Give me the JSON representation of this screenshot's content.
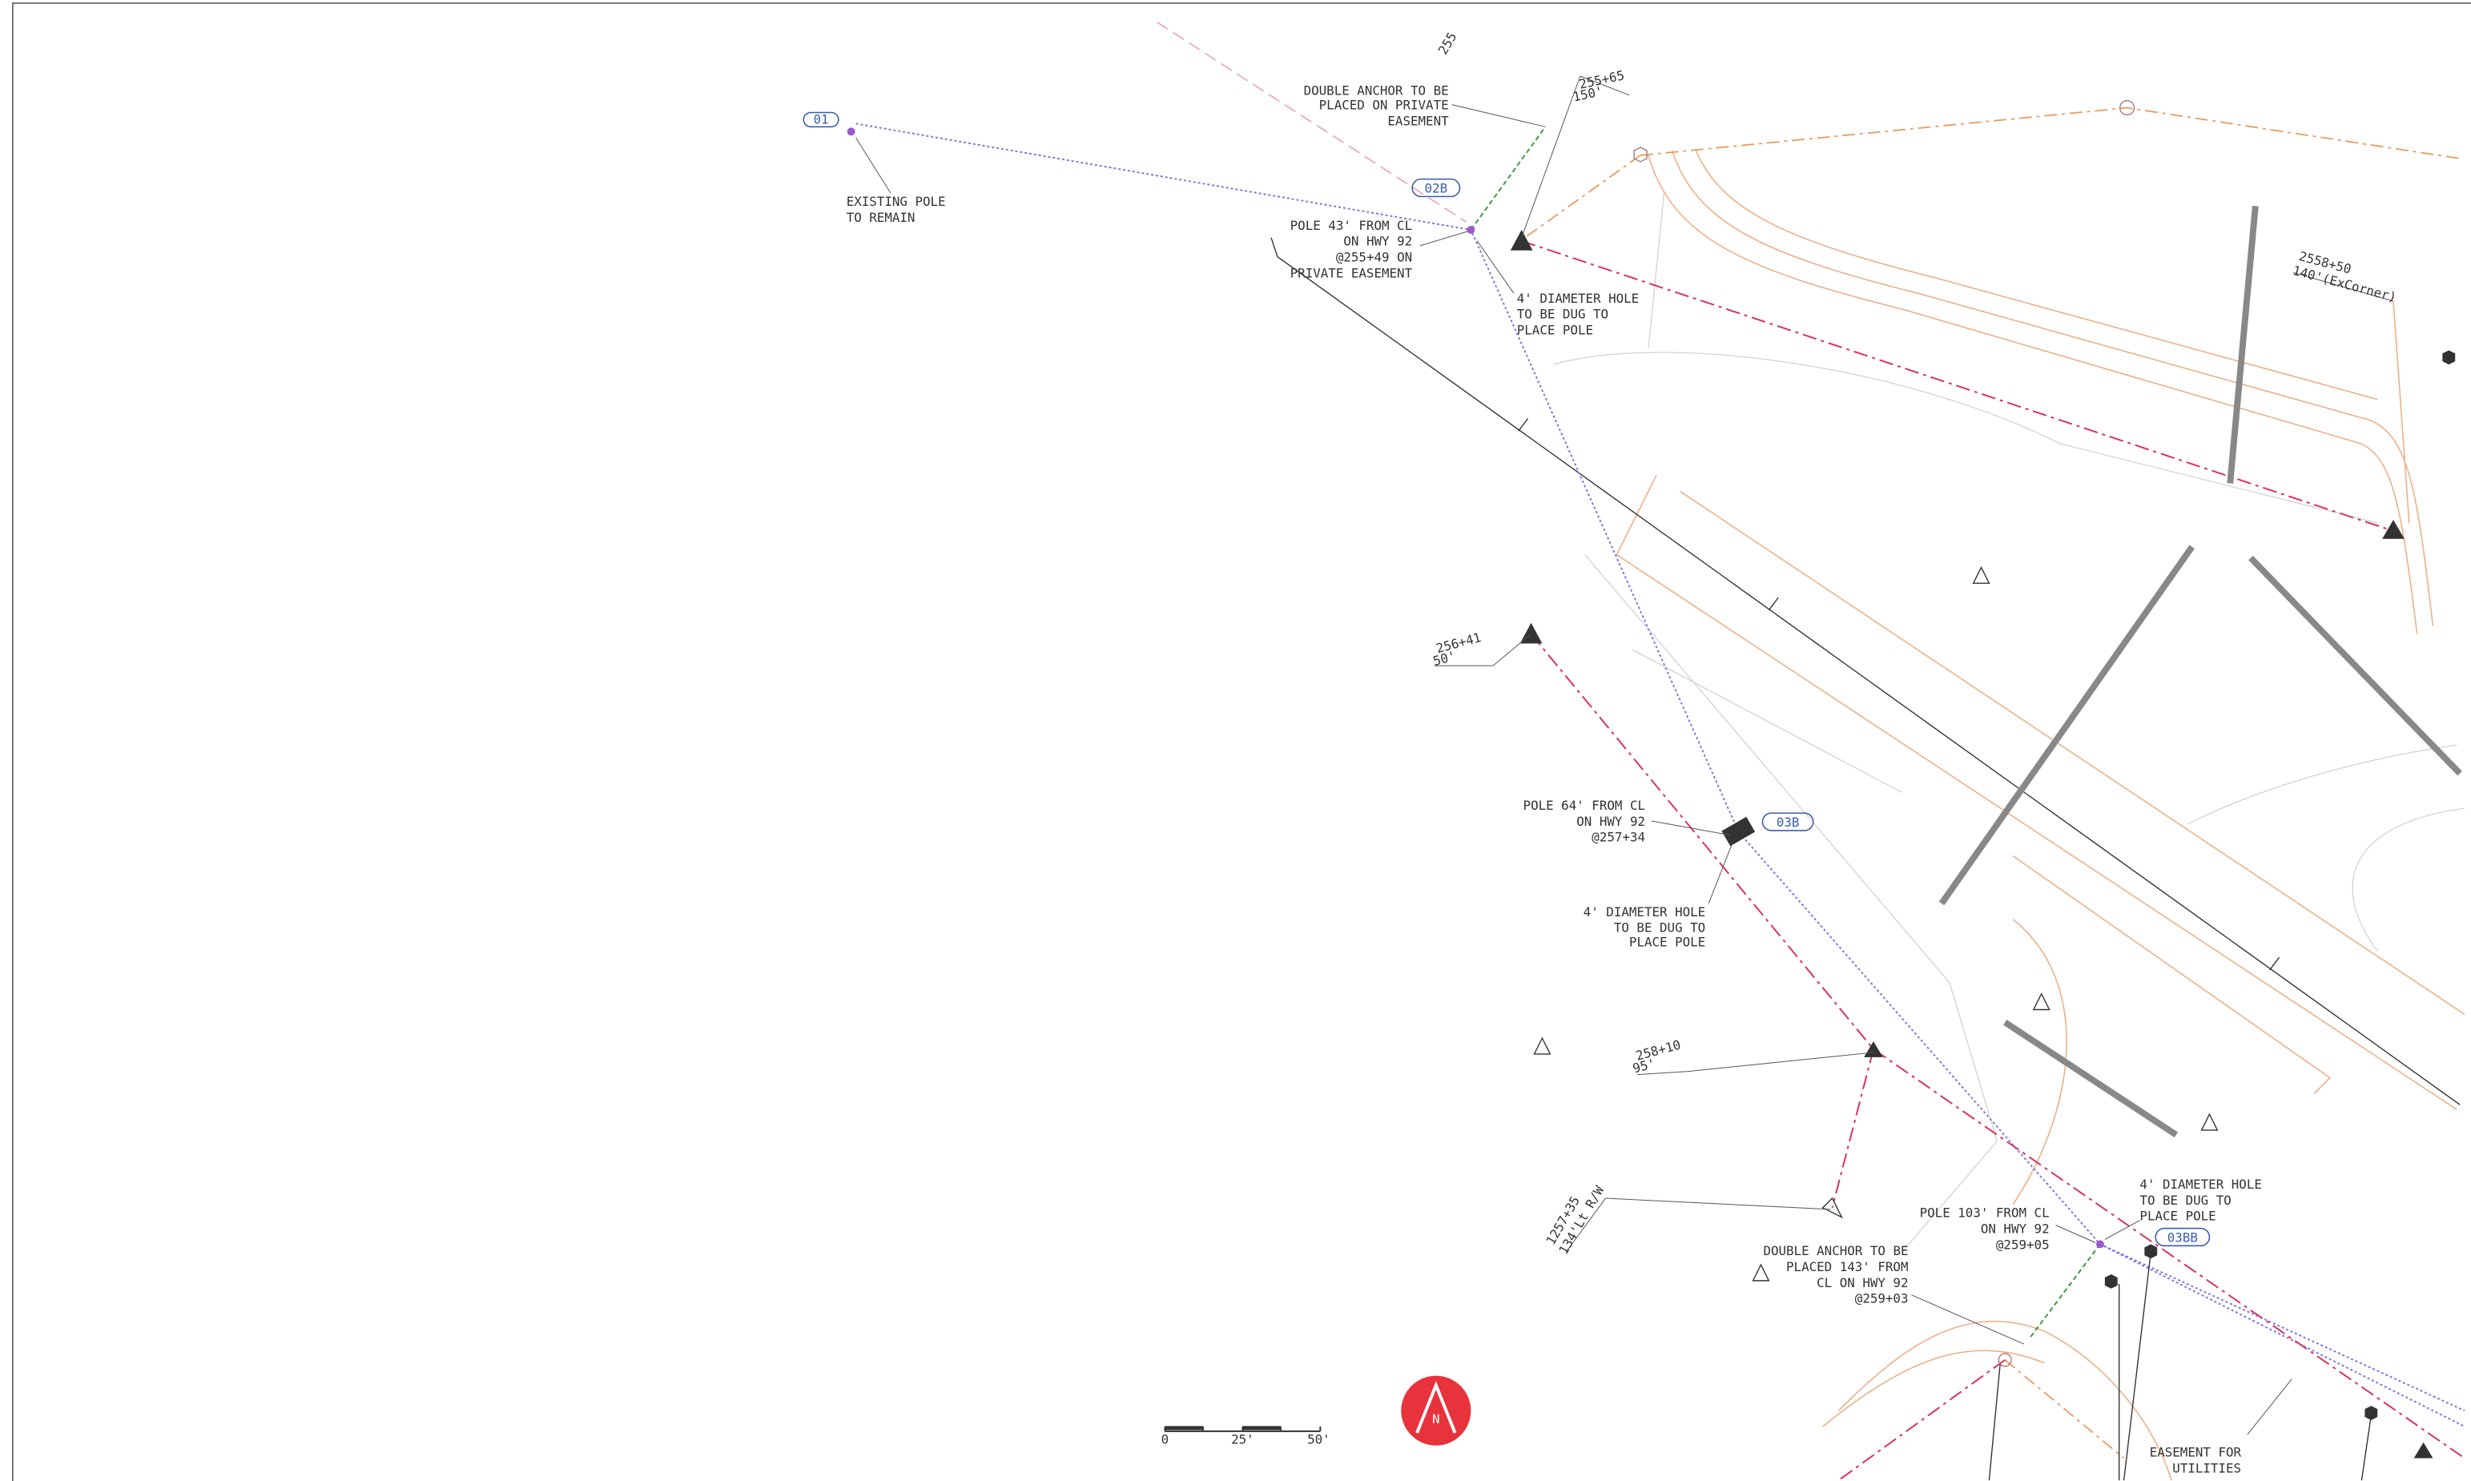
{
  "tags": [
    "01",
    "02B",
    "03B",
    "03BB"
  ],
  "contour": "255",
  "notes": [
    {
      "lines": [
        "EXISTING POLE",
        "TO REMAIN"
      ]
    },
    {
      "lines": [
        "DOUBLE ANCHOR TO BE",
        "PLACED ON PRIVATE",
        "EASEMENT"
      ]
    },
    {
      "lines": [
        "POLE 43' FROM CL",
        "ON HWY 92",
        "@255+49 ON",
        "PRIVATE EASEMENT"
      ]
    },
    {
      "lines": [
        "4' DIAMETER HOLE",
        "TO BE DUG TO",
        "PLACE POLE"
      ]
    },
    {
      "lines": [
        "POLE 64' FROM CL",
        "ON HWY 92",
        "@257+34"
      ]
    },
    {
      "lines": [
        "4' DIAMETER HOLE",
        "TO BE DUG TO",
        "PLACE POLE"
      ]
    },
    {
      "lines": [
        "4' DIAMETER HOLE",
        "TO BE DUG TO",
        "PLACE POLE"
      ]
    },
    {
      "lines": [
        "POLE 103' FROM CL",
        "ON HWY 92",
        "@259+05"
      ]
    },
    {
      "lines": [
        "DOUBLE ANCHOR TO BE",
        "PLACED 143' FROM",
        "CL ON HWY 92",
        "@259+03"
      ]
    },
    {
      "lines": [
        "EASEMENT FOR",
        "UTILITIES"
      ]
    }
  ],
  "stations": [
    {
      "station": "255+65",
      "offset": "150'"
    },
    {
      "station": "2558+50",
      "offset": "140'(ExCorner)"
    },
    {
      "station": "256+41",
      "offset": "50'"
    },
    {
      "station": "258+10",
      "offset": "95'"
    },
    {
      "station": "1257+35",
      "offset": "134'Lt R/W"
    }
  ],
  "scale": [
    "0",
    "25'",
    "50'"
  ],
  "north": "N"
}
